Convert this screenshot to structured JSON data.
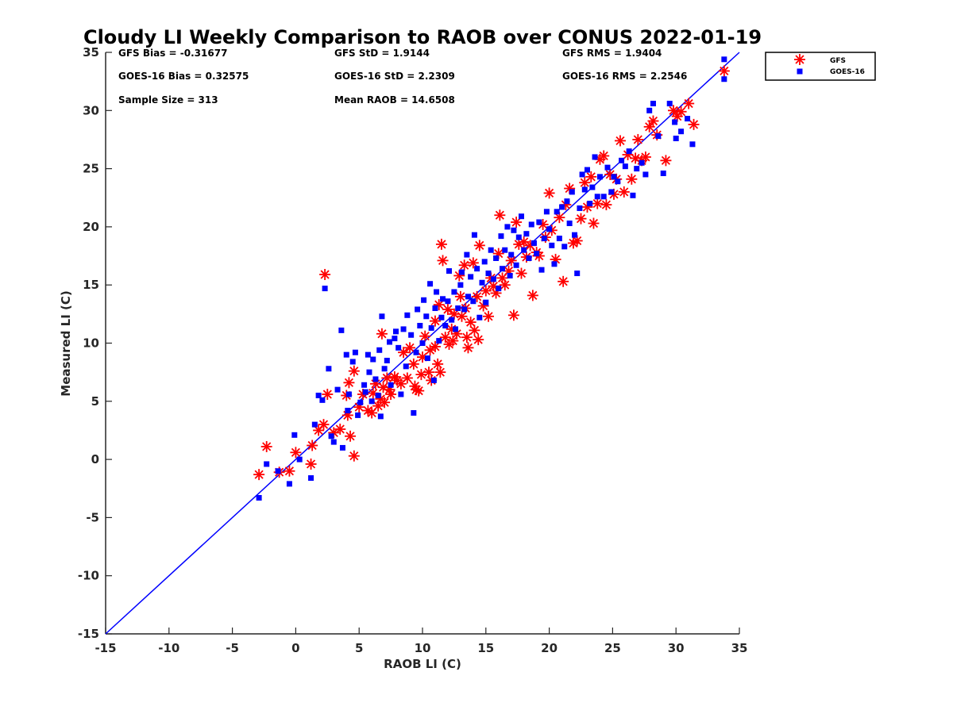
{
  "chart_data": {
    "type": "scatter",
    "title": "Cloudy LI Weekly Comparison to RAOB over CONUS 2022-01-19",
    "xlabel": "RAOB LI (C)",
    "ylabel": "Measured LI (C)",
    "xlim": [
      -15,
      35
    ],
    "ylim": [
      -15,
      35
    ],
    "xticks": [
      "-15",
      "-10",
      "-5",
      "0",
      "5",
      "10",
      "15",
      "20",
      "25",
      "30",
      "35"
    ],
    "yticks": [
      "-15",
      "-10",
      "-5",
      "0",
      "5",
      "10",
      "15",
      "20",
      "25",
      "30",
      "35"
    ],
    "grid": false,
    "legend_position": "outside top-right",
    "one_to_one_line": {
      "from": [
        -15,
        -15
      ],
      "to": [
        35,
        35
      ],
      "color": "#0000ff"
    },
    "stats": [
      "GFS Bias = -0.31677",
      "GFS StD = 1.9144",
      "GFS RMS = 1.9404",
      "GOES-16 Bias = 0.32575",
      "GOES-16 StD = 2.2309",
      "GOES-16 RMS = 2.2546",
      "Sample Size = 313",
      "Mean RAOB = 14.6508"
    ],
    "series": [
      {
        "name": "GFS",
        "marker": "asterisk",
        "color": "#ff0000",
        "points": [
          [
            -2.9,
            -1.3
          ],
          [
            -2.3,
            1.1
          ],
          [
            -1.3,
            -1.1
          ],
          [
            -0.5,
            -1.0
          ],
          [
            0.0,
            0.6
          ],
          [
            1.2,
            -0.4
          ],
          [
            1.3,
            1.2
          ],
          [
            1.8,
            2.5
          ],
          [
            2.2,
            3.0
          ],
          [
            2.3,
            15.9
          ],
          [
            2.5,
            5.6
          ],
          [
            3.0,
            2.3
          ],
          [
            3.5,
            2.6
          ],
          [
            4.0,
            5.5
          ],
          [
            4.1,
            3.8
          ],
          [
            4.2,
            6.6
          ],
          [
            4.3,
            2.0
          ],
          [
            4.6,
            0.3
          ],
          [
            4.6,
            7.6
          ],
          [
            5.0,
            4.5
          ],
          [
            5.3,
            5.6
          ],
          [
            5.7,
            4.2
          ],
          [
            6.0,
            4.0
          ],
          [
            6.1,
            5.7
          ],
          [
            6.3,
            6.5
          ],
          [
            6.5,
            4.6
          ],
          [
            6.7,
            5.2
          ],
          [
            6.8,
            10.8
          ],
          [
            6.9,
            6.2
          ],
          [
            7.0,
            4.9
          ],
          [
            7.2,
            7.0
          ],
          [
            7.4,
            6.0
          ],
          [
            7.5,
            5.6
          ],
          [
            7.8,
            7.1
          ],
          [
            8.0,
            6.8
          ],
          [
            8.3,
            6.5
          ],
          [
            8.5,
            9.2
          ],
          [
            8.8,
            7.0
          ],
          [
            9.0,
            9.6
          ],
          [
            9.3,
            8.2
          ],
          [
            9.4,
            6.3
          ],
          [
            9.5,
            6.0
          ],
          [
            9.7,
            5.9
          ],
          [
            9.9,
            7.3
          ],
          [
            10.0,
            8.8
          ],
          [
            10.2,
            10.6
          ],
          [
            10.5,
            7.5
          ],
          [
            10.6,
            9.4
          ],
          [
            10.7,
            6.8
          ],
          [
            11.0,
            9.7
          ],
          [
            11.0,
            11.9
          ],
          [
            11.2,
            8.2
          ],
          [
            11.3,
            13.3
          ],
          [
            11.4,
            7.5
          ],
          [
            11.5,
            18.5
          ],
          [
            11.6,
            17.1
          ],
          [
            11.8,
            10.5
          ],
          [
            12.0,
            12.9
          ],
          [
            12.1,
            9.9
          ],
          [
            12.3,
            11.2
          ],
          [
            12.4,
            10.2
          ],
          [
            12.5,
            12.5
          ],
          [
            12.7,
            10.8
          ],
          [
            12.9,
            15.8
          ],
          [
            13.0,
            14.0
          ],
          [
            13.1,
            12.3
          ],
          [
            13.3,
            16.7
          ],
          [
            13.4,
            13.0
          ],
          [
            13.5,
            10.5
          ],
          [
            13.6,
            9.6
          ],
          [
            13.8,
            11.8
          ],
          [
            14.0,
            16.9
          ],
          [
            14.1,
            11.1
          ],
          [
            14.3,
            14.0
          ],
          [
            14.4,
            10.3
          ],
          [
            14.5,
            18.4
          ],
          [
            14.8,
            13.2
          ],
          [
            15.0,
            14.5
          ],
          [
            15.2,
            12.3
          ],
          [
            15.4,
            15.6
          ],
          [
            15.6,
            14.9
          ],
          [
            15.8,
            14.3
          ],
          [
            16.0,
            17.7
          ],
          [
            16.1,
            21.0
          ],
          [
            16.3,
            15.6
          ],
          [
            16.5,
            15.0
          ],
          [
            16.8,
            16.2
          ],
          [
            17.0,
            17.1
          ],
          [
            17.2,
            12.4
          ],
          [
            17.4,
            20.4
          ],
          [
            17.6,
            18.5
          ],
          [
            17.8,
            16.0
          ],
          [
            18.0,
            18.7
          ],
          [
            18.2,
            17.4
          ],
          [
            18.5,
            18.4
          ],
          [
            18.7,
            14.1
          ],
          [
            19.0,
            17.8
          ],
          [
            19.2,
            17.5
          ],
          [
            19.5,
            20.2
          ],
          [
            19.7,
            19.1
          ],
          [
            20.0,
            22.9
          ],
          [
            20.2,
            19.7
          ],
          [
            20.5,
            17.2
          ],
          [
            20.8,
            20.8
          ],
          [
            21.1,
            15.3
          ],
          [
            21.3,
            21.9
          ],
          [
            21.6,
            23.3
          ],
          [
            21.9,
            18.6
          ],
          [
            22.2,
            18.8
          ],
          [
            22.5,
            20.7
          ],
          [
            22.8,
            23.8
          ],
          [
            23.0,
            21.7
          ],
          [
            23.3,
            24.3
          ],
          [
            23.5,
            20.3
          ],
          [
            23.8,
            22.0
          ],
          [
            24.0,
            25.8
          ],
          [
            24.3,
            26.1
          ],
          [
            24.5,
            21.9
          ],
          [
            24.8,
            24.5
          ],
          [
            25.1,
            22.8
          ],
          [
            25.3,
            24.1
          ],
          [
            25.6,
            27.4
          ],
          [
            25.9,
            23.0
          ],
          [
            26.2,
            26.2
          ],
          [
            26.5,
            24.1
          ],
          [
            26.8,
            25.9
          ],
          [
            27.0,
            27.5
          ],
          [
            27.3,
            25.7
          ],
          [
            27.6,
            26.0
          ],
          [
            27.9,
            28.6
          ],
          [
            28.2,
            29.1
          ],
          [
            28.5,
            27.9
          ],
          [
            29.2,
            25.7
          ],
          [
            29.8,
            30.0
          ],
          [
            30.1,
            29.5
          ],
          [
            30.4,
            29.9
          ],
          [
            31.0,
            30.6
          ],
          [
            31.4,
            28.8
          ],
          [
            33.8,
            33.4
          ]
        ]
      },
      {
        "name": "GOES-16",
        "marker": "square",
        "color": "#0000ff",
        "points": [
          [
            -2.9,
            -3.3
          ],
          [
            -2.3,
            -0.4
          ],
          [
            -1.4,
            -1.0
          ],
          [
            -0.5,
            -2.1
          ],
          [
            -0.1,
            2.1
          ],
          [
            0.3,
            0.0
          ],
          [
            1.2,
            -1.6
          ],
          [
            1.5,
            3.0
          ],
          [
            1.8,
            5.5
          ],
          [
            2.1,
            5.1
          ],
          [
            2.3,
            14.7
          ],
          [
            2.6,
            7.8
          ],
          [
            2.8,
            2.0
          ],
          [
            3.0,
            1.5
          ],
          [
            3.3,
            6.0
          ],
          [
            3.7,
            1.0
          ],
          [
            3.6,
            11.1
          ],
          [
            4.0,
            9.0
          ],
          [
            4.1,
            4.2
          ],
          [
            4.2,
            5.6
          ],
          [
            4.5,
            8.4
          ],
          [
            4.7,
            9.2
          ],
          [
            4.9,
            3.8
          ],
          [
            5.1,
            4.9
          ],
          [
            5.4,
            6.4
          ],
          [
            5.5,
            5.8
          ],
          [
            5.7,
            9.0
          ],
          [
            5.8,
            7.5
          ],
          [
            6.0,
            5.0
          ],
          [
            6.1,
            8.6
          ],
          [
            6.3,
            6.9
          ],
          [
            6.5,
            5.5
          ],
          [
            6.6,
            9.4
          ],
          [
            6.7,
            3.7
          ],
          [
            6.8,
            12.3
          ],
          [
            7.0,
            7.8
          ],
          [
            7.2,
            8.5
          ],
          [
            7.4,
            10.1
          ],
          [
            7.5,
            6.4
          ],
          [
            7.8,
            10.4
          ],
          [
            7.9,
            11.0
          ],
          [
            8.1,
            9.6
          ],
          [
            8.3,
            5.6
          ],
          [
            8.5,
            11.2
          ],
          [
            8.7,
            8.0
          ],
          [
            8.8,
            12.4
          ],
          [
            9.1,
            10.7
          ],
          [
            9.3,
            4.0
          ],
          [
            9.5,
            9.2
          ],
          [
            9.6,
            12.9
          ],
          [
            9.8,
            11.5
          ],
          [
            10.0,
            10.0
          ],
          [
            10.1,
            13.7
          ],
          [
            10.3,
            12.3
          ],
          [
            10.4,
            8.7
          ],
          [
            10.6,
            15.1
          ],
          [
            10.7,
            11.3
          ],
          [
            10.9,
            6.8
          ],
          [
            11.0,
            13.0
          ],
          [
            11.1,
            14.4
          ],
          [
            11.3,
            10.2
          ],
          [
            11.5,
            12.2
          ],
          [
            11.6,
            13.8
          ],
          [
            11.8,
            11.5
          ],
          [
            12.0,
            13.6
          ],
          [
            12.1,
            16.2
          ],
          [
            12.3,
            12.0
          ],
          [
            12.5,
            14.4
          ],
          [
            12.6,
            11.2
          ],
          [
            12.8,
            13.0
          ],
          [
            13.0,
            15.0
          ],
          [
            13.1,
            16.1
          ],
          [
            13.3,
            12.9
          ],
          [
            13.5,
            17.6
          ],
          [
            13.6,
            14.0
          ],
          [
            13.8,
            15.7
          ],
          [
            14.0,
            13.6
          ],
          [
            14.1,
            19.3
          ],
          [
            14.3,
            16.4
          ],
          [
            14.5,
            12.2
          ],
          [
            14.7,
            15.2
          ],
          [
            14.9,
            17.0
          ],
          [
            15.0,
            13.5
          ],
          [
            15.2,
            16.0
          ],
          [
            15.4,
            18.0
          ],
          [
            15.6,
            15.5
          ],
          [
            15.8,
            17.3
          ],
          [
            16.0,
            14.7
          ],
          [
            16.2,
            19.2
          ],
          [
            16.3,
            16.4
          ],
          [
            16.5,
            18.0
          ],
          [
            16.7,
            20.0
          ],
          [
            16.9,
            15.8
          ],
          [
            17.0,
            17.6
          ],
          [
            17.2,
            19.7
          ],
          [
            17.4,
            16.7
          ],
          [
            17.6,
            19.1
          ],
          [
            17.8,
            20.9
          ],
          [
            18.0,
            18.0
          ],
          [
            18.2,
            19.4
          ],
          [
            18.4,
            17.3
          ],
          [
            18.6,
            20.2
          ],
          [
            18.8,
            18.6
          ],
          [
            19.0,
            17.7
          ],
          [
            19.2,
            20.4
          ],
          [
            19.4,
            16.3
          ],
          [
            19.6,
            19.0
          ],
          [
            19.8,
            21.3
          ],
          [
            20.0,
            19.8
          ],
          [
            20.2,
            18.4
          ],
          [
            20.4,
            16.8
          ],
          [
            20.6,
            21.3
          ],
          [
            20.8,
            19.0
          ],
          [
            21.0,
            21.7
          ],
          [
            21.2,
            18.3
          ],
          [
            21.4,
            22.2
          ],
          [
            21.6,
            20.3
          ],
          [
            21.8,
            23.0
          ],
          [
            22.0,
            19.3
          ],
          [
            22.2,
            16.0
          ],
          [
            22.4,
            21.6
          ],
          [
            22.6,
            24.5
          ],
          [
            22.8,
            23.2
          ],
          [
            23.0,
            24.9
          ],
          [
            23.2,
            22.0
          ],
          [
            23.4,
            23.4
          ],
          [
            23.6,
            26.0
          ],
          [
            23.8,
            22.6
          ],
          [
            24.0,
            24.3
          ],
          [
            24.3,
            22.6
          ],
          [
            24.6,
            25.1
          ],
          [
            24.9,
            23.0
          ],
          [
            25.1,
            24.3
          ],
          [
            25.4,
            23.9
          ],
          [
            25.7,
            25.7
          ],
          [
            26.0,
            25.2
          ],
          [
            26.3,
            26.5
          ],
          [
            26.6,
            22.7
          ],
          [
            26.9,
            25.0
          ],
          [
            27.3,
            25.5
          ],
          [
            27.6,
            24.5
          ],
          [
            27.9,
            30.0
          ],
          [
            28.2,
            30.6
          ],
          [
            28.6,
            27.8
          ],
          [
            29.0,
            24.6
          ],
          [
            29.5,
            30.6
          ],
          [
            29.9,
            29.0
          ],
          [
            30.0,
            27.6
          ],
          [
            30.4,
            28.2
          ],
          [
            30.9,
            29.3
          ],
          [
            31.3,
            27.1
          ],
          [
            33.8,
            34.4
          ],
          [
            33.8,
            32.7
          ]
        ]
      }
    ]
  }
}
